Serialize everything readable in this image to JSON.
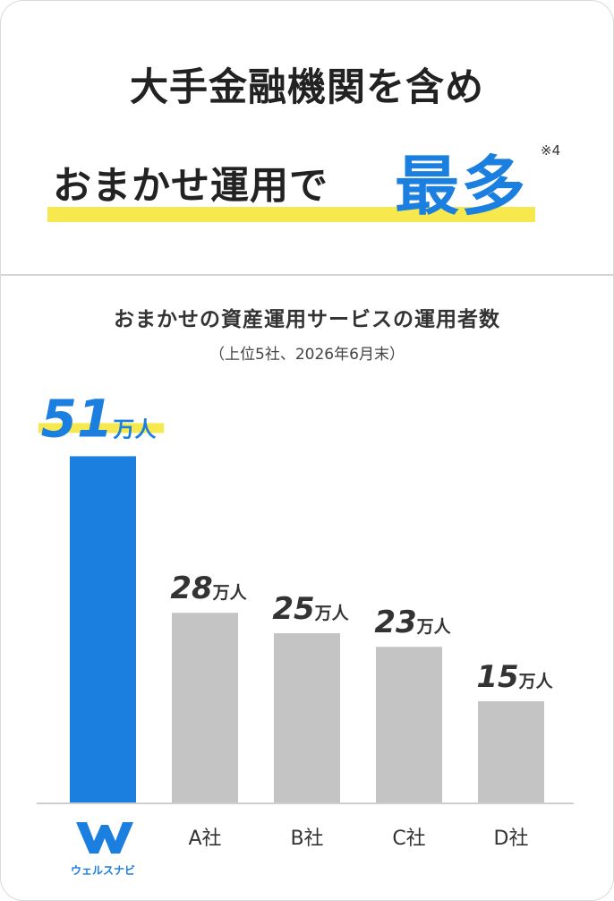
{
  "headline": {
    "line1": "大手金融機関を含め",
    "line2": "おまかせ運用で",
    "accent": "最多",
    "note": "※4"
  },
  "colors": {
    "accent_blue": "#1b7fe0",
    "bar_gray": "#c4c4c4",
    "highlight_yellow": "#f7e84e",
    "text_dark": "#222222"
  },
  "chart_data": {
    "type": "bar",
    "title": "おまかせの資産運用サービスの運用者数",
    "subtitle": "（上位5社、2026年6月末）",
    "unit": "万人",
    "categories": [
      "ウェルスナビ",
      "A社",
      "B社",
      "C社",
      "D社"
    ],
    "values": [
      51,
      28,
      25,
      23,
      15
    ],
    "highlighted_index": 0,
    "logo_icon": "wealthnavi-w-logo-icon",
    "ylim": [
      0,
      60
    ],
    "grid": false
  }
}
